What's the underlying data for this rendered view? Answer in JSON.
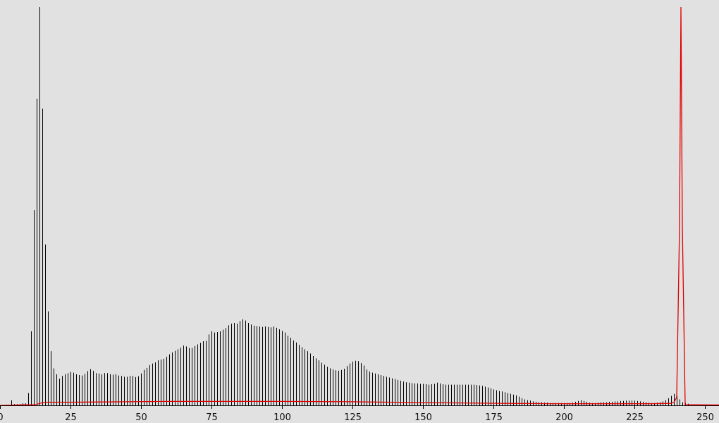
{
  "colors": {
    "background": "#e1e1e1",
    "bars": "#000000",
    "line": "#e00000",
    "axis": "#000000"
  },
  "chart_data": {
    "type": "bar",
    "title": "",
    "xlabel": "",
    "ylabel": "",
    "grid": false,
    "xlim": [
      0,
      255
    ],
    "ylim": [
      0,
      1
    ],
    "x_ticks": [
      0,
      25,
      50,
      75,
      100,
      125,
      150,
      175,
      200,
      225,
      250
    ],
    "x_tick_labels": [
      "0",
      "25",
      "50",
      "75",
      "100",
      "125",
      "150",
      "175",
      "200",
      "225",
      "250"
    ],
    "series": [
      {
        "values": [
          0,
          0,
          0,
          0,
          0.013,
          0.003,
          0.003,
          0.003,
          0.005,
          0.005,
          0.031,
          0.186,
          0.49,
          0.77,
          1.0,
          0.745,
          0.404,
          0.236,
          0.136,
          0.093,
          0.078,
          0.067,
          0.074,
          0.078,
          0.081,
          0.084,
          0.082,
          0.078,
          0.076,
          0.075,
          0.079,
          0.086,
          0.091,
          0.087,
          0.081,
          0.08,
          0.078,
          0.081,
          0.081,
          0.078,
          0.077,
          0.078,
          0.075,
          0.074,
          0.072,
          0.072,
          0.074,
          0.074,
          0.071,
          0.073,
          0.08,
          0.089,
          0.094,
          0.101,
          0.105,
          0.108,
          0.113,
          0.115,
          0.117,
          0.122,
          0.128,
          0.133,
          0.137,
          0.141,
          0.145,
          0.15,
          0.148,
          0.144,
          0.144,
          0.149,
          0.153,
          0.157,
          0.161,
          0.162,
          0.178,
          0.186,
          0.183,
          0.184,
          0.186,
          0.19,
          0.194,
          0.201,
          0.205,
          0.207,
          0.205,
          0.212,
          0.216,
          0.213,
          0.207,
          0.203,
          0.2,
          0.199,
          0.198,
          0.197,
          0.198,
          0.197,
          0.196,
          0.198,
          0.195,
          0.191,
          0.187,
          0.183,
          0.175,
          0.17,
          0.163,
          0.158,
          0.152,
          0.146,
          0.141,
          0.136,
          0.13,
          0.124,
          0.118,
          0.113,
          0.107,
          0.102,
          0.097,
          0.093,
          0.09,
          0.088,
          0.087,
          0.089,
          0.092,
          0.099,
          0.105,
          0.11,
          0.112,
          0.111,
          0.106,
          0.1,
          0.09,
          0.085,
          0.082,
          0.08,
          0.078,
          0.076,
          0.074,
          0.072,
          0.07,
          0.068,
          0.066,
          0.064,
          0.062,
          0.06,
          0.058,
          0.057,
          0.056,
          0.055,
          0.055,
          0.054,
          0.054,
          0.053,
          0.052,
          0.053,
          0.054,
          0.057,
          0.055,
          0.053,
          0.052,
          0.052,
          0.052,
          0.052,
          0.052,
          0.052,
          0.052,
          0.052,
          0.052,
          0.052,
          0.052,
          0.051,
          0.05,
          0.049,
          0.047,
          0.045,
          0.043,
          0.04,
          0.038,
          0.036,
          0.035,
          0.033,
          0.031,
          0.029,
          0.027,
          0.025,
          0.022,
          0.018,
          0.015,
          0.013,
          0.012,
          0.01,
          0.009,
          0.008,
          0.008,
          0.007,
          0.007,
          0.006,
          0.006,
          0.006,
          0.006,
          0.006,
          0.006,
          0.006,
          0.006,
          0.007,
          0.009,
          0.011,
          0.013,
          0.011,
          0.009,
          0.007,
          0.006,
          0.006,
          0.007,
          0.008,
          0.008,
          0.008,
          0.009,
          0.009,
          0.01,
          0.01,
          0.011,
          0.011,
          0.012,
          0.012,
          0.012,
          0.012,
          0.011,
          0.01,
          0.009,
          0.008,
          0.007,
          0.006,
          0.006,
          0.007,
          0.008,
          0.01,
          0.013,
          0.018,
          0.024,
          0.029,
          0.024,
          0.015,
          0.008,
          0.006,
          0.004,
          0,
          0,
          0,
          0,
          0,
          0,
          0,
          0,
          0,
          0,
          0,
          0,
          0,
          0,
          0
        ]
      }
    ],
    "line_series": {
      "points": [
        [
          0,
          0
        ],
        [
          13,
          0.002
        ],
        [
          14,
          0.005
        ],
        [
          16,
          0.008
        ],
        [
          25,
          0.008
        ],
        [
          45,
          0.009
        ],
        [
          60,
          0.01
        ],
        [
          100,
          0.01
        ],
        [
          125,
          0.009
        ],
        [
          150,
          0.007
        ],
        [
          165,
          0.006
        ],
        [
          180,
          0.005
        ],
        [
          200,
          0.004
        ],
        [
          215,
          0.004
        ],
        [
          230,
          0.004
        ],
        [
          238,
          0.005
        ],
        [
          239,
          0.008
        ],
        [
          240,
          0.02
        ],
        [
          241,
          0.45
        ],
        [
          241.5,
          1.0
        ],
        [
          242,
          0.45
        ],
        [
          243,
          0.002
        ],
        [
          255,
          0.001
        ]
      ]
    }
  }
}
